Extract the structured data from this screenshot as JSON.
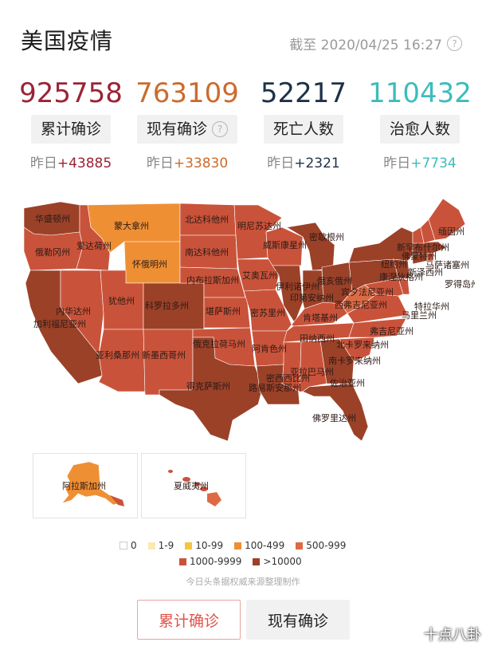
{
  "header": {
    "title": "美国疫情",
    "timestamp": "截至 2020/04/25 16:27",
    "help_icon": "question-circle-icon"
  },
  "stats": [
    {
      "value": "925758",
      "label": "累计确诊",
      "delta_prefix": "昨日",
      "delta": "+43885",
      "color": "#9b2335",
      "help": false
    },
    {
      "value": "763109",
      "label": "现有确诊",
      "delta_prefix": "昨日",
      "delta": "+33830",
      "color": "#cc6b2c",
      "help": true
    },
    {
      "value": "52217",
      "label": "死亡人数",
      "delta_prefix": "昨日",
      "delta": "+2321",
      "color": "#1e3148",
      "help": false
    },
    {
      "value": "110432",
      "label": "治愈人数",
      "delta_prefix": "昨日",
      "delta": "+7734",
      "color": "#3dbcbc",
      "help": false
    }
  ],
  "map": {
    "states": [
      "华盛顿州",
      "蒙大拿州",
      "北达科他州",
      "明尼苏达州",
      "缅因州",
      "俄勒冈州",
      "爱达荷州",
      "怀俄明州",
      "南达科他州",
      "威斯康星州",
      "密歇根州",
      "纽约州",
      "新罕布什尔州",
      "佛蒙特州",
      "马萨诸塞州",
      "罗得岛州",
      "康涅狄格州",
      "新泽西州",
      "内布拉斯加州",
      "艾奥瓦州",
      "伊利诺伊州",
      "印第安纳州",
      "俄亥俄州",
      "宾夕法尼亚州",
      "特拉华州",
      "马里兰州",
      "内华达州",
      "犹他州",
      "科罗拉多州",
      "堪萨斯州",
      "密苏里州",
      "肯塔基州",
      "西弗吉尼亚州",
      "弗吉尼亚州",
      "加利福尼亚州",
      "亚利桑那州",
      "新墨西哥州",
      "俄克拉荷马州",
      "阿肯色州",
      "田纳西州",
      "北卡罗来纳州",
      "南卡罗来纳州",
      "密西西比州",
      "亚拉巴马州",
      "佐治亚州",
      "得克萨斯州",
      "路易斯安那州",
      "佛罗里达州",
      "阿拉斯加州",
      "夏威夷州"
    ],
    "colors": {
      "c0": "#ffffff",
      "c1": "#faeab2",
      "c2": "#f5c542",
      "c3": "#ef8f34",
      "c4": "#dc6b45",
      "c5": "#c9533a",
      "c6": "#9b4128"
    }
  },
  "legend": [
    {
      "label": "0",
      "color": "#ffffff"
    },
    {
      "label": "1-9",
      "color": "#faeab2"
    },
    {
      "label": "10-99",
      "color": "#f5c542"
    },
    {
      "label": "100-499",
      "color": "#ef8f34"
    },
    {
      "label": "500-999",
      "color": "#dc6b45"
    },
    {
      "label": "1000-9999",
      "color": "#c9533a"
    },
    {
      "label": ">10000",
      "color": "#9b4128"
    }
  ],
  "source": "今日头条据权威来源整理制作",
  "buttons": {
    "cumulative": "累计确诊",
    "current": "现有确诊"
  },
  "watermark": "十点八卦"
}
